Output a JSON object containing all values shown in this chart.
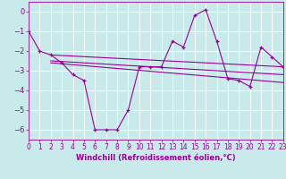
{
  "xlabel": "Windchill (Refroidissement éolien,°C)",
  "background_color": "#c8eaea",
  "grid_color": "#b0d8d8",
  "line_color": "#990099",
  "series": {
    "main": [
      [
        0,
        -1.0
      ],
      [
        1,
        -2.0
      ],
      [
        2,
        -2.2
      ],
      [
        3,
        -2.6
      ],
      [
        4,
        -3.2
      ],
      [
        5,
        -3.5
      ],
      [
        6,
        -6.0
      ],
      [
        7,
        -6.0
      ],
      [
        8,
        -6.0
      ],
      [
        9,
        -5.0
      ],
      [
        10,
        -2.8
      ],
      [
        11,
        -2.8
      ],
      [
        12,
        -2.8
      ],
      [
        13,
        -1.5
      ],
      [
        14,
        -1.8
      ],
      [
        15,
        -0.2
      ],
      [
        16,
        0.1
      ],
      [
        17,
        -1.5
      ],
      [
        18,
        -3.4
      ],
      [
        19,
        -3.5
      ],
      [
        20,
        -3.8
      ],
      [
        21,
        -1.8
      ],
      [
        22,
        -2.3
      ],
      [
        23,
        -2.8
      ]
    ],
    "line1": [
      [
        2,
        -2.2
      ],
      [
        23,
        -2.8
      ]
    ],
    "line2": [
      [
        2,
        -2.5
      ],
      [
        23,
        -3.2
      ]
    ],
    "line3": [
      [
        2,
        -2.6
      ],
      [
        23,
        -3.6
      ]
    ]
  },
  "xlim": [
    0,
    23
  ],
  "ylim": [
    -6.5,
    0.5
  ],
  "yticks": [
    0,
    -1,
    -2,
    -3,
    -4,
    -5,
    -6
  ],
  "xticks": [
    0,
    1,
    2,
    3,
    4,
    5,
    6,
    7,
    8,
    9,
    10,
    11,
    12,
    13,
    14,
    15,
    16,
    17,
    18,
    19,
    20,
    21,
    22,
    23
  ],
  "tick_fontsize": 5.5,
  "xlabel_fontsize": 6.0
}
